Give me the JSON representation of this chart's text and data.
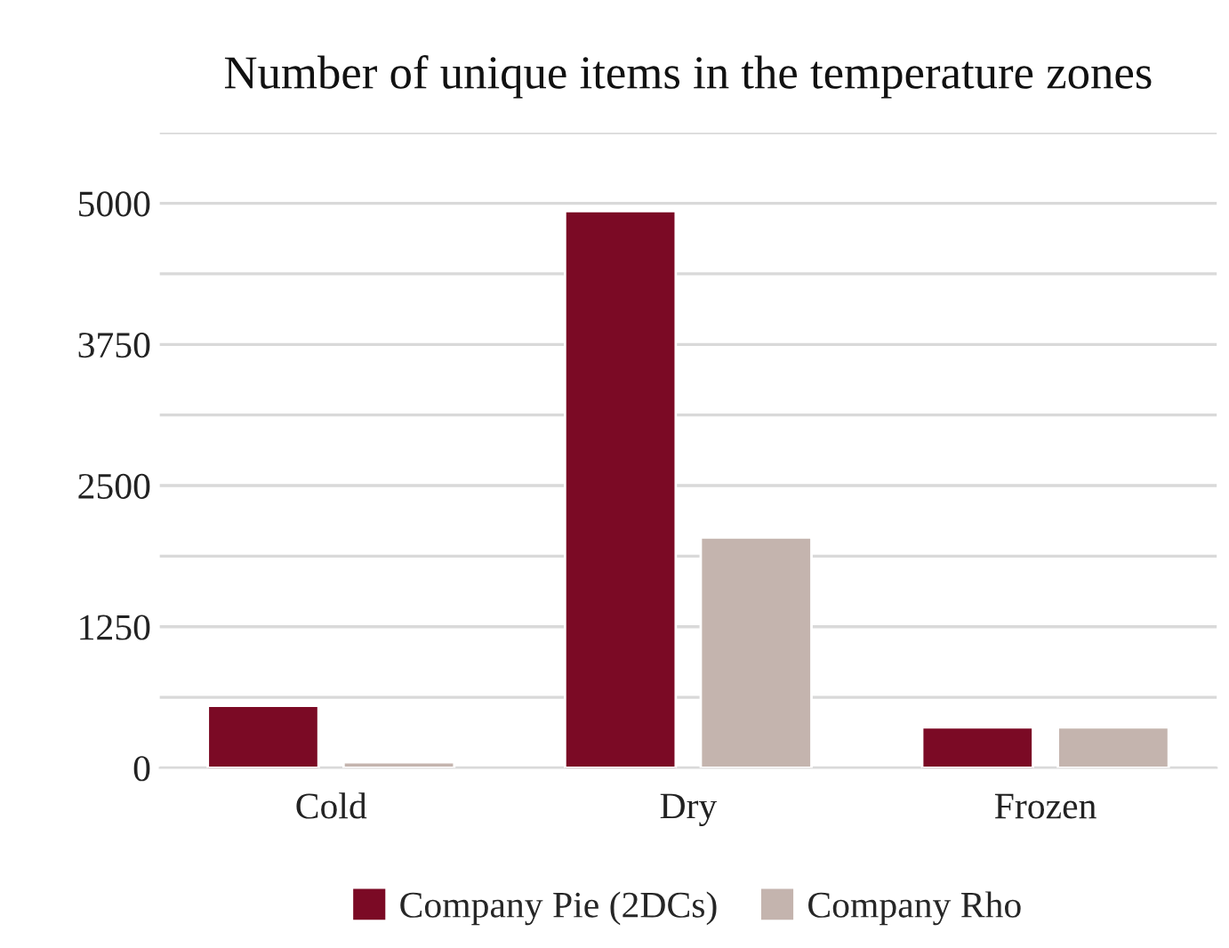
{
  "chart_data": {
    "type": "bar",
    "title": "Number of unique items in the temperature zones",
    "categories": [
      "Cold",
      "Dry",
      "Frozen"
    ],
    "series": [
      {
        "name": "Company Pie (2DCs)",
        "color": "#7b0a25",
        "values": [
          550,
          4930,
          360
        ]
      },
      {
        "name": "Company Rho",
        "color": "#c4b4ae",
        "values": [
          50,
          2040,
          360
        ]
      }
    ],
    "ylim": [
      0,
      5625
    ],
    "yticks": [
      0,
      {
        "value": 625,
        "label": null
      },
      1250,
      {
        "value": 1875,
        "label": null
      },
      2500,
      {
        "value": 3125,
        "label": null
      },
      3750,
      {
        "value": 4375,
        "label": null
      },
      5000,
      {
        "value": 5625,
        "label": null
      }
    ],
    "grid": "y",
    "legend": "bottom"
  }
}
